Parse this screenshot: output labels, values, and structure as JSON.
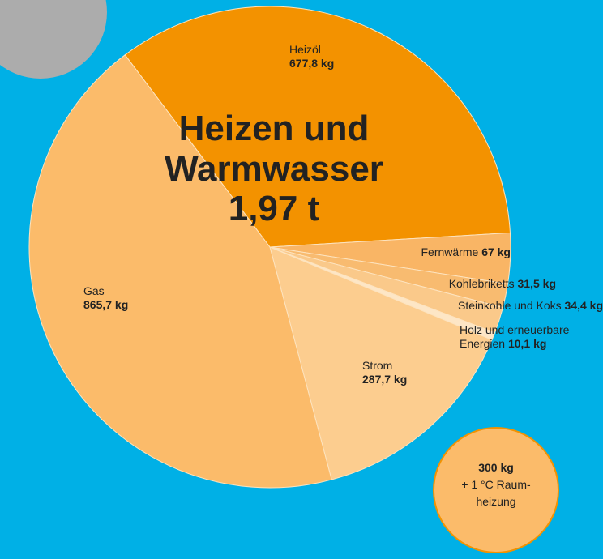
{
  "chart_data": {
    "type": "pie",
    "title": "Heizen und Warmwasser",
    "total_label": "1,97 t",
    "categories": [
      "Heizöl",
      "Fernwärme",
      "Kohlebriketts",
      "Steinkohle und Koks",
      "Holz und erneuerbare Energien",
      "Strom",
      "Gas"
    ],
    "values": [
      677.8,
      67,
      31.5,
      34.4,
      10.1,
      287.7,
      865.7
    ],
    "value_labels": [
      "677,8 kg",
      "67 kg",
      "31,5 kg",
      "34,4 kg",
      "10,1 kg",
      "287,7 kg",
      "865,7 kg"
    ],
    "colors": [
      "#f39200",
      "#f9b565",
      "#f8bb70",
      "#fac98a",
      "#fde6c6",
      "#fccd8f",
      "#fbbb6a"
    ],
    "annotation": {
      "value_label": "300 kg",
      "lines": [
        "+ 1 °C Raum-",
        "heizung"
      ]
    }
  }
}
